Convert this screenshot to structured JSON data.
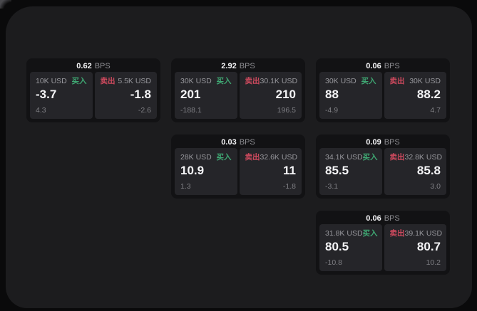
{
  "colors": {
    "page_border": "#0a0a0b",
    "container_bg": "#1c1c1e",
    "card_bg": "#121214",
    "panel_bg": "#252529",
    "buy_green": "#3fa873",
    "sell_red": "#cf4a5e",
    "text_primary": "#f5f5f7",
    "text_muted": "#8e8e93",
    "text_label": "#98989d",
    "text_dim": "#7f7f84"
  },
  "labels": {
    "bps_suffix": "BPS",
    "buy": "买入",
    "sell": "卖出"
  },
  "cards": [
    {
      "row": 1,
      "col": 1,
      "bps": "0.62",
      "buy": {
        "size": "10K USD",
        "price": "-3.7",
        "sub": "4.3"
      },
      "sell": {
        "size": "5.5K USD",
        "price": "-1.8",
        "sub": "-2.6"
      }
    },
    {
      "row": 1,
      "col": 2,
      "bps": "2.92",
      "buy": {
        "size": "30K USD",
        "price": "201",
        "sub": "-188.1"
      },
      "sell": {
        "size": "30.1K USD",
        "price": "210",
        "sub": "196.5"
      }
    },
    {
      "row": 1,
      "col": 3,
      "bps": "0.06",
      "buy": {
        "size": "30K USD",
        "price": "88",
        "sub": "-4.9"
      },
      "sell": {
        "size": "30K USD",
        "price": "88.2",
        "sub": "4.7"
      }
    },
    {
      "row": 2,
      "col": 2,
      "bps": "0.03",
      "buy": {
        "size": "28K USD",
        "price": "10.9",
        "sub": "1.3"
      },
      "sell": {
        "size": "32.6K USD",
        "price": "11",
        "sub": "-1.8"
      }
    },
    {
      "row": 2,
      "col": 3,
      "bps": "0.09",
      "buy": {
        "size": "34.1K USD",
        "price": "85.5",
        "sub": "-3.1"
      },
      "sell": {
        "size": "32.8K USD",
        "price": "85.8",
        "sub": "3.0"
      }
    },
    {
      "row": 3,
      "col": 3,
      "bps": "0.06",
      "buy": {
        "size": "31.8K USD",
        "price": "80.5",
        "sub": "-10.8"
      },
      "sell": {
        "size": "39.1K USD",
        "price": "80.7",
        "sub": "10.2"
      }
    }
  ]
}
